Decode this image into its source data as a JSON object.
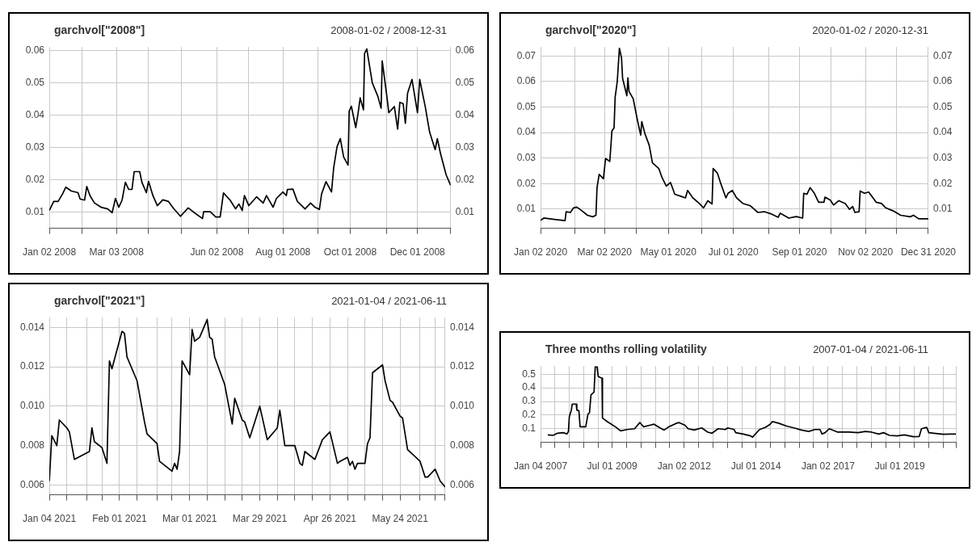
{
  "chart_data": [
    {
      "type": "line",
      "title": "garchvol[\"2008\"]",
      "subtitle": "2008-01-02 / 2008-12-31",
      "marker": "none",
      "grid": true,
      "x": [
        "2008-01-02",
        "2008-01-06",
        "2008-01-10",
        "2008-01-14",
        "2008-01-17",
        "2008-01-22",
        "2008-01-28",
        "2008-01-30",
        "2008-02-03",
        "2008-02-05",
        "2008-02-08",
        "2008-02-12",
        "2008-02-18",
        "2008-02-24",
        "2008-02-28",
        "2008-03-02",
        "2008-03-05",
        "2008-03-08",
        "2008-03-11",
        "2008-03-14",
        "2008-03-17",
        "2008-03-19",
        "2008-03-24",
        "2008-03-26",
        "2008-03-30",
        "2008-04-01",
        "2008-04-05",
        "2008-04-09",
        "2008-04-14",
        "2008-04-19",
        "2008-04-24",
        "2008-04-30",
        "2008-05-07",
        "2008-05-13",
        "2008-05-20",
        "2008-05-21",
        "2008-05-27",
        "2008-06-01",
        "2008-06-05",
        "2008-06-08",
        "2008-06-14",
        "2008-06-19",
        "2008-06-22",
        "2008-06-25",
        "2008-06-27",
        "2008-07-01",
        "2008-07-08",
        "2008-07-14",
        "2008-07-17",
        "2008-07-23",
        "2008-07-26",
        "2008-08-01",
        "2008-08-04",
        "2008-08-05",
        "2008-08-10",
        "2008-08-14",
        "2008-08-21",
        "2008-08-26",
        "2008-08-30",
        "2008-09-03",
        "2008-09-05",
        "2008-09-09",
        "2008-09-14",
        "2008-09-16",
        "2008-09-19",
        "2008-09-22",
        "2008-09-25",
        "2008-09-29",
        "2008-09-30",
        "2008-10-02",
        "2008-10-06",
        "2008-10-08",
        "2008-10-10",
        "2008-10-13",
        "2008-10-14",
        "2008-10-16",
        "2008-10-21",
        "2008-10-26",
        "2008-10-29",
        "2008-10-30",
        "2008-11-03",
        "2008-11-05",
        "2008-11-10",
        "2008-11-13",
        "2008-11-15",
        "2008-11-18",
        "2008-11-20",
        "2008-11-22",
        "2008-11-26",
        "2008-12-01",
        "2008-12-03",
        "2008-12-08",
        "2008-12-12",
        "2008-12-17",
        "2008-12-19",
        "2008-12-22",
        "2008-12-27",
        "2008-12-31"
      ],
      "series": [
        {
          "color": "#000000",
          "values": [
            0.0105,
            0.0133,
            0.0133,
            0.0156,
            0.0177,
            0.0165,
            0.016,
            0.014,
            0.0137,
            0.0179,
            0.015,
            0.0128,
            0.0115,
            0.011,
            0.0098,
            0.0142,
            0.0115,
            0.0137,
            0.0192,
            0.017,
            0.017,
            0.0225,
            0.0225,
            0.0192,
            0.016,
            0.0195,
            0.0151,
            0.012,
            0.0138,
            0.0133,
            0.011,
            0.0087,
            0.0113,
            0.0097,
            0.008,
            0.0101,
            0.0101,
            0.0085,
            0.0085,
            0.0159,
            0.0137,
            0.011,
            0.0125,
            0.0105,
            0.0151,
            0.012,
            0.0147,
            0.0128,
            0.0151,
            0.0115,
            0.0142,
            0.0162,
            0.0151,
            0.017,
            0.0171,
            0.0133,
            0.011,
            0.0128,
            0.0115,
            0.0108,
            0.0156,
            0.0194,
            0.0162,
            0.0238,
            0.0302,
            0.0327,
            0.027,
            0.0245,
            0.0412,
            0.0427,
            0.0361,
            0.0403,
            0.0453,
            0.0416,
            0.059,
            0.0604,
            0.0499,
            0.0458,
            0.0421,
            0.0567,
            0.0463,
            0.0407,
            0.0426,
            0.0356,
            0.0439,
            0.0435,
            0.0374,
            0.0467,
            0.051,
            0.0407,
            0.051,
            0.0426,
            0.0347,
            0.0293,
            0.0327,
            0.0279,
            0.0215,
            0.0183
          ]
        }
      ],
      "xlim": [
        "2008-01-02",
        "2008-12-31"
      ],
      "xticks": [
        {
          "value": "2008-01-02",
          "label": "Jan 02 2008"
        },
        {
          "value": "2008-02-01",
          "label": null
        },
        {
          "value": "2008-03-03",
          "label": "Mar 03 2008"
        },
        {
          "value": "2008-04-01",
          "label": null
        },
        {
          "value": "2008-05-01",
          "label": null
        },
        {
          "value": "2008-06-02",
          "label": "Jun 02 2008"
        },
        {
          "value": "2008-07-01",
          "label": null
        },
        {
          "value": "2008-08-01",
          "label": "Aug 01 2008"
        },
        {
          "value": "2008-09-02",
          "label": null
        },
        {
          "value": "2008-10-01",
          "label": "Oct 01 2008"
        },
        {
          "value": "2008-11-03",
          "label": null
        },
        {
          "value": "2008-12-01",
          "label": "Dec 01 2008"
        },
        {
          "value": "2008-12-31",
          "label": null
        }
      ],
      "ylim": [
        0.005,
        0.061
      ],
      "yticks": [
        0.01,
        0.02,
        0.03,
        0.04,
        0.05,
        0.06
      ],
      "y2lim": [
        0.005,
        0.061
      ],
      "y2ticks": [
        0.01,
        0.02,
        0.03,
        0.04,
        0.05,
        0.06
      ]
    },
    {
      "type": "line",
      "title": "garchvol[\"2020\"]",
      "subtitle": "2020-01-02 / 2020-12-31",
      "marker": "none",
      "grid": true,
      "x": [
        "2020-01-02",
        "2020-01-05",
        "2020-01-15",
        "2020-01-25",
        "2020-01-26",
        "2020-01-30",
        "2020-02-02",
        "2020-02-05",
        "2020-02-10",
        "2020-02-15",
        "2020-02-20",
        "2020-02-23",
        "2020-02-24",
        "2020-02-26",
        "2020-03-01",
        "2020-03-03",
        "2020-03-07",
        "2020-03-09",
        "2020-03-11",
        "2020-03-12",
        "2020-03-14",
        "2020-03-16",
        "2020-03-18",
        "2020-03-19",
        "2020-03-23",
        "2020-03-24",
        "2020-03-25",
        "2020-03-29",
        "2020-04-02",
        "2020-04-05",
        "2020-04-06",
        "2020-04-09",
        "2020-04-13",
        "2020-04-16",
        "2020-04-22",
        "2020-04-25",
        "2020-04-29",
        "2020-05-03",
        "2020-05-07",
        "2020-05-13",
        "2020-05-17",
        "2020-05-19",
        "2020-05-24",
        "2020-05-30",
        "2020-06-03",
        "2020-06-07",
        "2020-06-11",
        "2020-06-12",
        "2020-06-16",
        "2020-06-19",
        "2020-06-24",
        "2020-06-26",
        "2020-06-30",
        "2020-07-04",
        "2020-07-10",
        "2020-07-17",
        "2020-07-24",
        "2020-07-30",
        "2020-08-05",
        "2020-08-12",
        "2020-08-14",
        "2020-08-22",
        "2020-08-29",
        "2020-09-04",
        "2020-09-05",
        "2020-09-08",
        "2020-09-11",
        "2020-09-15",
        "2020-09-19",
        "2020-09-24",
        "2020-09-25",
        "2020-09-30",
        "2020-10-03",
        "2020-10-08",
        "2020-10-14",
        "2020-10-18",
        "2020-10-21",
        "2020-10-23",
        "2020-10-27",
        "2020-10-28",
        "2020-11-01",
        "2020-11-05",
        "2020-11-12",
        "2020-11-17",
        "2020-11-21",
        "2020-11-28",
        "2020-12-05",
        "2020-12-14",
        "2020-12-17",
        "2020-12-22",
        "2020-12-31"
      ],
      "series": [
        {
          "color": "#000000",
          "values": [
            0.0056,
            0.0065,
            0.006,
            0.0055,
            0.009,
            0.0087,
            0.0105,
            0.0108,
            0.0093,
            0.0076,
            0.007,
            0.0076,
            0.0184,
            0.0236,
            0.0219,
            0.0298,
            0.0287,
            0.0407,
            0.0418,
            0.0538,
            0.06,
            0.073,
            0.0692,
            0.0612,
            0.0544,
            0.0614,
            0.0561,
            0.0532,
            0.0447,
            0.039,
            0.0443,
            0.0395,
            0.035,
            0.0281,
            0.0259,
            0.0224,
            0.019,
            0.0204,
            0.0158,
            0.015,
            0.0144,
            0.0173,
            0.0144,
            0.0122,
            0.0105,
            0.0133,
            0.012,
            0.0259,
            0.0241,
            0.0202,
            0.0144,
            0.0162,
            0.0173,
            0.0144,
            0.0122,
            0.0113,
            0.0087,
            0.009,
            0.0082,
            0.0068,
            0.0084,
            0.0065,
            0.0071,
            0.0065,
            0.0162,
            0.0158,
            0.0184,
            0.0162,
            0.0127,
            0.0127,
            0.0147,
            0.0135,
            0.0116,
            0.0133,
            0.0122,
            0.0099,
            0.011,
            0.0087,
            0.009,
            0.0171,
            0.0162,
            0.0167,
            0.0127,
            0.0122,
            0.0105,
            0.0093,
            0.0076,
            0.007,
            0.0076,
            0.0062,
            0.0062
          ]
        }
      ],
      "xlim": [
        "2020-01-02",
        "2020-12-31"
      ],
      "xticks": [
        {
          "value": "2020-01-02",
          "label": "Jan 02 2020"
        },
        {
          "value": "2020-02-03",
          "label": null
        },
        {
          "value": "2020-03-02",
          "label": "Mar 02 2020"
        },
        {
          "value": "2020-04-01",
          "label": null
        },
        {
          "value": "2020-05-01",
          "label": "May 01 2020"
        },
        {
          "value": "2020-06-01",
          "label": null
        },
        {
          "value": "2020-07-01",
          "label": "Jul 01 2020"
        },
        {
          "value": "2020-08-03",
          "label": null
        },
        {
          "value": "2020-09-01",
          "label": "Sep 01 2020"
        },
        {
          "value": "2020-10-01",
          "label": null
        },
        {
          "value": "2020-11-02",
          "label": "Nov 02 2020"
        },
        {
          "value": "2020-12-01",
          "label": null
        },
        {
          "value": "2020-12-31",
          "label": "Dec 31 2020"
        }
      ],
      "ylim": [
        0.0025,
        0.0735
      ],
      "yticks": [
        0.01,
        0.02,
        0.03,
        0.04,
        0.05,
        0.06,
        0.07
      ],
      "y2lim": [
        0.0025,
        0.0735
      ],
      "y2ticks": [
        0.01,
        0.02,
        0.03,
        0.04,
        0.05,
        0.06,
        0.07
      ]
    },
    {
      "type": "line",
      "title": "garchvol[\"2021\"]",
      "subtitle": "2021-01-04 / 2021-06-11",
      "marker": "none",
      "grid": true,
      "x": [
        "2021-01-04",
        "2021-01-05",
        "2021-01-07",
        "2021-01-08",
        "2021-01-11",
        "2021-01-12",
        "2021-01-14",
        "2021-01-20",
        "2021-01-21",
        "2021-01-22",
        "2021-01-25",
        "2021-01-27",
        "2021-01-28",
        "2021-01-29",
        "2021-02-02",
        "2021-02-03",
        "2021-02-04",
        "2021-02-08",
        "2021-02-11",
        "2021-02-12",
        "2021-02-16",
        "2021-02-17",
        "2021-02-22",
        "2021-02-23",
        "2021-02-24",
        "2021-02-25",
        "2021-02-26",
        "2021-03-01",
        "2021-03-02",
        "2021-03-03",
        "2021-03-05",
        "2021-03-08",
        "2021-03-09",
        "2021-03-10",
        "2021-03-11",
        "2021-03-15",
        "2021-03-18",
        "2021-03-19",
        "2021-03-22",
        "2021-03-23",
        "2021-03-25",
        "2021-03-29",
        "2021-04-01",
        "2021-04-05",
        "2021-04-06",
        "2021-04-08",
        "2021-04-12",
        "2021-04-14",
        "2021-04-15",
        "2021-04-16",
        "2021-04-20",
        "2021-04-23",
        "2021-04-26",
        "2021-04-29",
        "2021-04-30",
        "2021-05-03",
        "2021-05-04",
        "2021-05-05",
        "2021-05-06",
        "2021-05-07",
        "2021-05-10",
        "2021-05-11",
        "2021-05-12",
        "2021-05-13",
        "2021-05-14",
        "2021-05-17",
        "2021-05-18",
        "2021-05-20",
        "2021-05-21",
        "2021-05-24",
        "2021-05-25",
        "2021-05-27",
        "2021-06-01",
        "2021-06-03",
        "2021-06-04",
        "2021-06-07",
        "2021-06-09",
        "2021-06-11"
      ],
      "series": [
        {
          "color": "#000000",
          "values": [
            0.0062,
            0.0085,
            0.008,
            0.0093,
            0.0089,
            0.0087,
            0.0073,
            0.0077,
            0.0089,
            0.0082,
            0.0079,
            0.0071,
            0.0123,
            0.0119,
            0.0138,
            0.0137,
            0.0125,
            0.0113,
            0.0092,
            0.0086,
            0.0081,
            0.0072,
            0.0067,
            0.0071,
            0.0068,
            0.0077,
            0.0123,
            0.0116,
            0.0139,
            0.0133,
            0.0135,
            0.0144,
            0.0135,
            0.0134,
            0.0125,
            0.0111,
            0.0091,
            0.0104,
            0.0093,
            0.0092,
            0.0084,
            0.01,
            0.0083,
            0.0089,
            0.0098,
            0.008,
            0.008,
            0.0071,
            0.007,
            0.0077,
            0.0073,
            0.0083,
            0.0087,
            0.0071,
            0.0072,
            0.0074,
            0.007,
            0.0072,
            0.0068,
            0.0071,
            0.0071,
            0.0081,
            0.0084,
            0.0117,
            0.0118,
            0.0121,
            0.0113,
            0.0103,
            0.0102,
            0.0095,
            0.0094,
            0.0078,
            0.0072,
            0.0064,
            0.0064,
            0.0068,
            0.0062,
            0.0059
          ]
        }
      ],
      "xlim": [
        "2021-01-04",
        "2021-06-11"
      ],
      "xticks": [
        {
          "value": "2021-01-04",
          "label": "Jan 04 2021"
        },
        {
          "value": "2021-01-11",
          "label": null
        },
        {
          "value": "2021-01-19",
          "label": null
        },
        {
          "value": "2021-01-25",
          "label": null
        },
        {
          "value": "2021-02-01",
          "label": "Feb 01 2021"
        },
        {
          "value": "2021-02-08",
          "label": null
        },
        {
          "value": "2021-02-16",
          "label": null
        },
        {
          "value": "2021-02-22",
          "label": null
        },
        {
          "value": "2021-03-01",
          "label": "Mar 01 2021"
        },
        {
          "value": "2021-03-08",
          "label": null
        },
        {
          "value": "2021-03-15",
          "label": null
        },
        {
          "value": "2021-03-22",
          "label": null
        },
        {
          "value": "2021-03-29",
          "label": "Mar 29 2021"
        },
        {
          "value": "2021-04-05",
          "label": null
        },
        {
          "value": "2021-04-12",
          "label": null
        },
        {
          "value": "2021-04-19",
          "label": null
        },
        {
          "value": "2021-04-26",
          "label": "Apr 26 2021"
        },
        {
          "value": "2021-05-03",
          "label": null
        },
        {
          "value": "2021-05-10",
          "label": null
        },
        {
          "value": "2021-05-17",
          "label": null
        },
        {
          "value": "2021-05-24",
          "label": "May 24 2021"
        },
        {
          "value": "2021-06-01",
          "label": null
        },
        {
          "value": "2021-06-07",
          "label": null
        },
        {
          "value": "2021-06-11",
          "label": null
        }
      ],
      "ylim": [
        0.0055,
        0.0145
      ],
      "yticks": [
        0.006,
        0.008,
        {
          "value": 0.01,
          "label": "0.010"
        },
        0.012,
        0.014
      ],
      "y2lim": [
        0.0055,
        0.0145
      ],
      "y2ticks": [
        0.006,
        0.008,
        {
          "value": 0.01,
          "label": "0.010"
        },
        0.012,
        0.014
      ]
    },
    {
      "type": "line",
      "title": "Three months rolling volatility",
      "subtitle": "2007-01-04 / 2021-06-11",
      "marker": "none",
      "grid": true,
      "x": [
        "2007-04-05",
        "2007-06-10",
        "2007-08-08",
        "2007-10-20",
        "2007-12-05",
        "2007-12-24",
        "2008-01-04",
        "2008-01-30",
        "2008-02-10",
        "2008-04-01",
        "2008-04-08",
        "2008-05-05",
        "2008-05-20",
        "2008-06-21",
        "2008-07-30",
        "2008-08-28",
        "2008-09-16",
        "2008-10-05",
        "2008-11-13",
        "2008-11-28",
        "2008-12-21",
        "2009-01-05",
        "2009-02-03",
        "2009-02-22",
        "2009-02-28",
        "2009-05-08",
        "2009-08-11",
        "2009-10-16",
        "2010-01-08",
        "2010-04-12",
        "2010-06-17",
        "2010-08-04",
        "2010-10-20",
        "2010-12-15",
        "2011-03-01",
        "2011-04-22",
        "2011-06-20",
        "2011-09-21",
        "2011-10-30",
        "2012-01-12",
        "2012-02-20",
        "2012-05-08",
        "2012-08-11",
        "2012-10-26",
        "2012-12-20",
        "2013-03-07",
        "2013-06-06",
        "2013-07-08",
        "2013-09-27",
        "2013-10-16",
        "2014-01-19",
        "2014-04-23",
        "2014-05-19",
        "2014-08-15",
        "2014-10-30",
        "2014-12-28",
        "2015-01-26",
        "2015-04-20",
        "2015-07-24",
        "2015-10-27",
        "2016-01-27",
        "2016-05-01",
        "2016-07-16",
        "2016-09-21",
        "2016-10-16",
        "2016-11-25",
        "2017-01-15",
        "2017-03-01",
        "2017-04-27",
        "2017-09-24",
        "2018-01-15",
        "2018-04-20",
        "2018-07-05",
        "2018-10-08",
        "2018-12-05",
        "2019-02-20",
        "2019-05-26",
        "2019-08-28",
        "2019-12-20",
        "2020-03-03",
        "2020-04-01",
        "2020-06-06",
        "2020-07-02",
        "2020-09-27",
        "2021-01-01",
        "2021-04-05",
        "2021-06-11"
      ],
      "series": [
        {
          "color": "#000000",
          "values": [
            0.055,
            0.051,
            0.067,
            0.071,
            0.061,
            0.08,
            0.188,
            0.237,
            0.281,
            0.281,
            0.237,
            0.231,
            0.114,
            0.114,
            0.114,
            0.207,
            0.217,
            0.348,
            0.369,
            0.555,
            0.555,
            0.484,
            0.475,
            0.471,
            0.178,
            0.149,
            0.114,
            0.084,
            0.094,
            0.1,
            0.145,
            0.114,
            0.125,
            0.133,
            0.106,
            0.09,
            0.114,
            0.139,
            0.145,
            0.125,
            0.1,
            0.09,
            0.106,
            0.075,
            0.067,
            0.1,
            0.094,
            0.106,
            0.094,
            0.071,
            0.061,
            0.047,
            0.038,
            0.094,
            0.11,
            0.133,
            0.153,
            0.139,
            0.119,
            0.106,
            0.09,
            0.08,
            0.094,
            0.094,
            0.061,
            0.071,
            0.1,
            0.09,
            0.076,
            0.075,
            0.071,
            0.08,
            0.075,
            0.061,
            0.071,
            0.051,
            0.047,
            0.055,
            0.041,
            0.043,
            0.1,
            0.11,
            0.071,
            0.065,
            0.059,
            0.061,
            0.061
          ]
        }
      ],
      "xlim": [
        "2007-01-04",
        "2021-06-11"
      ],
      "xticks": [
        {
          "value": "2007-01-04",
          "label": "Jan 04 2007"
        },
        {
          "value": "2007-07-02",
          "label": null
        },
        {
          "value": "2008-01-02",
          "label": null
        },
        {
          "value": "2008-07-01",
          "label": null
        },
        {
          "value": "2009-01-02",
          "label": null
        },
        {
          "value": "2009-07-01",
          "label": "Jul 01 2009"
        },
        {
          "value": "2010-01-04",
          "label": null
        },
        {
          "value": "2010-07-01",
          "label": null
        },
        {
          "value": "2011-01-03",
          "label": null
        },
        {
          "value": "2011-07-01",
          "label": null
        },
        {
          "value": "2012-01-02",
          "label": "Jan 02 2012"
        },
        {
          "value": "2012-07-02",
          "label": null
        },
        {
          "value": "2013-01-02",
          "label": null
        },
        {
          "value": "2013-07-01",
          "label": null
        },
        {
          "value": "2014-01-02",
          "label": null
        },
        {
          "value": "2014-07-01",
          "label": "Jul 01 2014"
        },
        {
          "value": "2015-01-02",
          "label": null
        },
        {
          "value": "2015-07-01",
          "label": null
        },
        {
          "value": "2016-01-04",
          "label": null
        },
        {
          "value": "2016-07-01",
          "label": null
        },
        {
          "value": "2017-01-02",
          "label": "Jan 02 2017"
        },
        {
          "value": "2017-07-03",
          "label": null
        },
        {
          "value": "2018-01-02",
          "label": null
        },
        {
          "value": "2018-07-02",
          "label": null
        },
        {
          "value": "2019-01-02",
          "label": null
        },
        {
          "value": "2019-07-01",
          "label": "Jul 01 2019"
        },
        {
          "value": "2020-01-02",
          "label": null
        },
        {
          "value": "2020-07-01",
          "label": null
        },
        {
          "value": "2021-01-04",
          "label": null
        },
        {
          "value": "2021-06-11",
          "label": null
        }
      ],
      "ylim": [
        0,
        0.56
      ],
      "yticks": [
        0.1,
        0.2,
        0.3,
        0.4,
        0.5
      ]
    }
  ]
}
